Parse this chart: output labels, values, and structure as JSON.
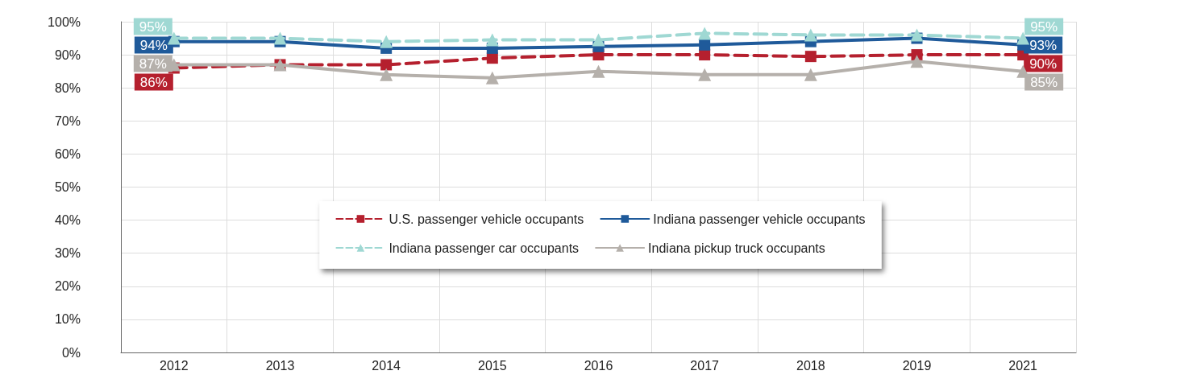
{
  "chart_data": {
    "type": "line",
    "categories": [
      "2012",
      "2013",
      "2014",
      "2015",
      "2016",
      "2017",
      "2018",
      "2019",
      "2021"
    ],
    "ylim": [
      0,
      100
    ],
    "yticks": [
      {
        "value": 0,
        "label": "0%"
      },
      {
        "value": 10,
        "label": "10%"
      },
      {
        "value": 20,
        "label": "20%"
      },
      {
        "value": 30,
        "label": "30%"
      },
      {
        "value": 40,
        "label": "40%"
      },
      {
        "value": 50,
        "label": "50%"
      },
      {
        "value": 60,
        "label": "60%"
      },
      {
        "value": 70,
        "label": "70%"
      },
      {
        "value": 80,
        "label": "80%"
      },
      {
        "value": 90,
        "label": "90%"
      },
      {
        "value": 100,
        "label": "100%"
      }
    ],
    "grid": true,
    "legend": "center",
    "series": [
      {
        "name": "U.S. passenger vehicle occupants",
        "color": "#b5202e",
        "marker": "square",
        "line_style": "dashed",
        "values": [
          86,
          87,
          87,
          89,
          90,
          90,
          89.5,
          90,
          90
        ],
        "value_labels": [
          "86%",
          null,
          null,
          null,
          null,
          null,
          null,
          null,
          "90%"
        ]
      },
      {
        "name": "Indiana passenger vehicle occupants",
        "color": "#1f5a9a",
        "marker": "square",
        "line_style": "solid",
        "values": [
          94,
          94,
          92,
          92,
          92.5,
          93,
          94,
          95,
          93
        ],
        "value_labels": [
          "94%",
          null,
          null,
          null,
          null,
          null,
          null,
          null,
          "93%"
        ]
      },
      {
        "name": "Indiana passenger car occupants",
        "color": "#9fd8d3",
        "marker": "triangle",
        "line_style": "dashed",
        "values": [
          95,
          95,
          94,
          94.5,
          94.5,
          96.5,
          96,
          96,
          95
        ],
        "value_labels": [
          "95%",
          null,
          null,
          null,
          null,
          null,
          null,
          null,
          "95%"
        ]
      },
      {
        "name": "Indiana pickup truck occupants",
        "color": "#b5b0ab",
        "marker": "triangle",
        "line_style": "solid",
        "values": [
          87,
          87,
          84,
          83,
          85,
          84,
          84,
          88,
          85
        ],
        "value_labels": [
          "87%",
          null,
          null,
          null,
          null,
          null,
          null,
          null,
          "85%"
        ]
      }
    ]
  }
}
